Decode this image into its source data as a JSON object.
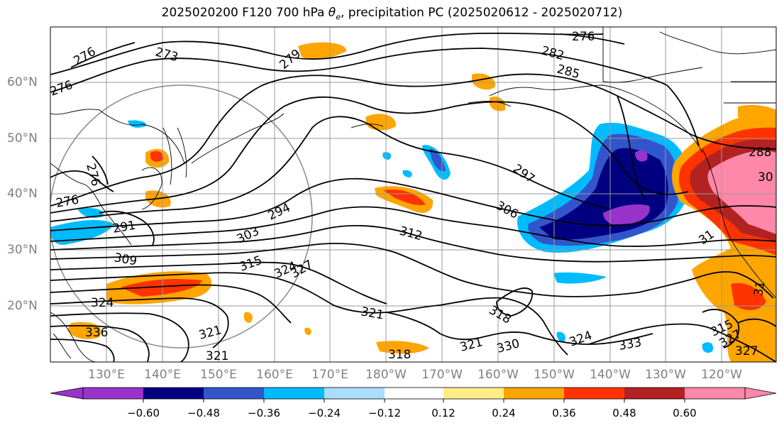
{
  "title": {
    "prefix": "2025020200 F120 700 hPa ",
    "theta": "θ",
    "theta_sub": "e",
    "suffix": ", precipitation PC (2025020612 - 2025020712)"
  },
  "lat_labels": [
    "60°N",
    "50°N",
    "40°N",
    "30°N",
    "20°N"
  ],
  "lon_labels": [
    "130°E",
    "140°E",
    "150°E",
    "160°E",
    "170°E",
    "180°W",
    "170°W",
    "160°W",
    "150°W",
    "140°W",
    "130°W",
    "120°W"
  ],
  "colorbar": {
    "colors": [
      "#9933cc",
      "#000080",
      "#3355cc",
      "#00bbff",
      "#aaddff",
      "#ffffff",
      "#ffee88",
      "#ffa500",
      "#ff3300",
      "#b22222",
      "#ff88aa"
    ],
    "ticks": [
      "−0.60",
      "−0.48",
      "−0.36",
      "−0.24",
      "−0.12",
      "0.12",
      "0.24",
      "0.36",
      "0.48",
      "0.60"
    ]
  },
  "contour_labels": [
    "276",
    "273",
    "279",
    "276",
    "282",
    "285",
    "276",
    "288",
    "30",
    "297",
    "306",
    "294",
    "303",
    "312",
    "315",
    "324",
    "327",
    "309",
    "291",
    "276",
    "321",
    "318",
    "324",
    "321",
    "318",
    "321",
    "330",
    "333",
    "336",
    "327",
    "315",
    "324",
    "327",
    "31",
    "31",
    "276",
    "321"
  ]
}
